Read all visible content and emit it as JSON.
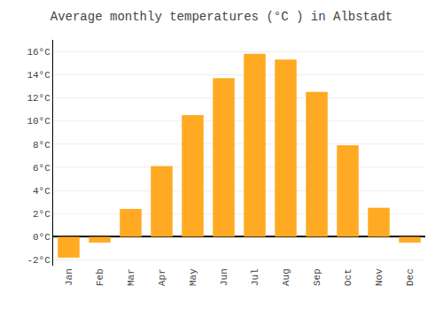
{
  "chart_data": {
    "type": "bar",
    "title": "Average monthly temperatures (°C ) in Albstadt",
    "categories": [
      "Jan",
      "Feb",
      "Mar",
      "Apr",
      "May",
      "Jun",
      "Jul",
      "Aug",
      "Sep",
      "Oct",
      "Nov",
      "Dec"
    ],
    "values": [
      -1.8,
      -0.5,
      2.4,
      6.1,
      10.5,
      13.7,
      15.8,
      15.3,
      12.5,
      7.9,
      2.5,
      -0.5
    ],
    "color": "#FFAA22",
    "ylim": [
      -2.5,
      17.0
    ],
    "yticks": [
      {
        "value": -2,
        "label": "-2°C"
      },
      {
        "value": 0,
        "label": "0°C"
      },
      {
        "value": 2,
        "label": "2°C"
      },
      {
        "value": 4,
        "label": "4°C"
      },
      {
        "value": 6,
        "label": "6°C"
      },
      {
        "value": 8,
        "label": "8°C"
      },
      {
        "value": 10,
        "label": "10°C"
      },
      {
        "value": 12,
        "label": "12°C"
      },
      {
        "value": 14,
        "label": "14°C"
      },
      {
        "value": 16,
        "label": "16°C"
      }
    ],
    "grid": true
  }
}
